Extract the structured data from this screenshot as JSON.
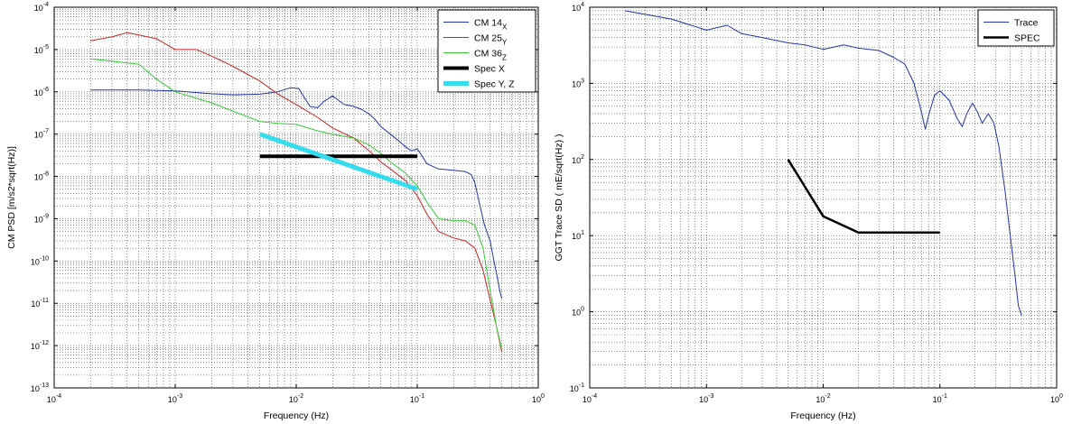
{
  "chart_data": [
    {
      "type": "line",
      "x_scale": "log",
      "y_scale": "log",
      "xlabel": "Frequency (Hz)",
      "ylabel": "CM PSD [m/s2*sqrt(Hz)]",
      "xlim": [
        0.0001,
        1
      ],
      "ylim": [
        1e-13,
        0.0001
      ],
      "x_ticks": [
        0.0001,
        0.001,
        0.01,
        0.1,
        1
      ],
      "x_tick_labels": [
        [
          "10",
          "-4"
        ],
        [
          "10",
          "-3"
        ],
        [
          "10",
          "-2"
        ],
        [
          "10",
          "-1"
        ],
        [
          "10",
          "0"
        ]
      ],
      "y_ticks": [
        1e-13,
        1e-12,
        1e-11,
        1e-10,
        1e-09,
        1e-08,
        1e-07,
        1e-06,
        1e-05,
        0.0001
      ],
      "y_tick_labels": [
        [
          "10",
          "-13"
        ],
        [
          "10",
          "-12"
        ],
        [
          "10",
          "-11"
        ],
        [
          "10",
          "-10"
        ],
        [
          "10",
          "-9"
        ],
        [
          "10",
          "-8"
        ],
        [
          "10",
          "-7"
        ],
        [
          "10",
          "-6"
        ],
        [
          "10",
          "-5"
        ],
        [
          "10",
          "-4"
        ]
      ],
      "grid": true,
      "legend_position": "top-right",
      "series": [
        {
          "name": "CM 14",
          "subscript": "X",
          "color": "#2233aa",
          "width": 1,
          "points": [
            [
              0.0002,
              1.1e-06
            ],
            [
              0.0005,
              1.1e-06
            ],
            [
              0.001,
              1.05e-06
            ],
            [
              0.002,
              9e-07
            ],
            [
              0.003,
              8.5e-07
            ],
            [
              0.005,
              8.8e-07
            ],
            [
              0.007,
              1e-06
            ],
            [
              0.009,
              1.25e-06
            ],
            [
              0.0105,
              1.2e-06
            ],
            [
              0.012,
              6.5e-07
            ],
            [
              0.013,
              4.5e-07
            ],
            [
              0.015,
              4.2e-07
            ],
            [
              0.017,
              6e-07
            ],
            [
              0.02,
              8e-07
            ],
            [
              0.022,
              6.5e-07
            ],
            [
              0.025,
              5e-07
            ],
            [
              0.03,
              4.5e-07
            ],
            [
              0.035,
              3.8e-07
            ],
            [
              0.04,
              3e-07
            ],
            [
              0.045,
              2.2e-07
            ],
            [
              0.05,
              1.5e-07
            ],
            [
              0.06,
              1e-07
            ],
            [
              0.07,
              7e-08
            ],
            [
              0.08,
              5e-08
            ],
            [
              0.09,
              4e-08
            ],
            [
              0.1,
              4.5e-08
            ],
            [
              0.11,
              3e-08
            ],
            [
              0.12,
              2e-08
            ],
            [
              0.15,
              1.5e-08
            ],
            [
              0.2,
              1.4e-08
            ],
            [
              0.25,
              1.3e-08
            ],
            [
              0.28,
              1.1e-08
            ],
            [
              0.3,
              7e-09
            ],
            [
              0.33,
              2e-09
            ],
            [
              0.36,
              7e-10
            ],
            [
              0.4,
              3e-10
            ],
            [
              0.43,
              1e-10
            ],
            [
              0.46,
              4e-11
            ],
            [
              0.48,
              2e-11
            ],
            [
              0.5,
              1.3e-11
            ]
          ]
        },
        {
          "name": "CM 25",
          "subscript": "Y",
          "color": "#cc2222",
          "width": 1,
          "points": [
            [
              0.0002,
              1.6e-05
            ],
            [
              0.0003,
              2e-05
            ],
            [
              0.0004,
              2.5e-05
            ],
            [
              0.0005,
              2.2e-05
            ],
            [
              0.0007,
              1.8e-05
            ],
            [
              0.001,
              1e-05
            ],
            [
              0.0015,
              1e-05
            ],
            [
              0.002,
              7e-06
            ],
            [
              0.003,
              4e-06
            ],
            [
              0.005,
              1.8e-06
            ],
            [
              0.007,
              9e-07
            ],
            [
              0.01,
              5e-07
            ],
            [
              0.015,
              2.5e-07
            ],
            [
              0.02,
              1.4e-07
            ],
            [
              0.03,
              8e-08
            ],
            [
              0.04,
              4e-08
            ],
            [
              0.05,
              2.2e-08
            ],
            [
              0.06,
              1.5e-08
            ],
            [
              0.08,
              8e-09
            ],
            [
              0.1,
              3.5e-09
            ],
            [
              0.12,
              1.3e-09
            ],
            [
              0.15,
              5e-10
            ],
            [
              0.2,
              3.5e-10
            ],
            [
              0.25,
              3e-10
            ],
            [
              0.3,
              2e-10
            ],
            [
              0.35,
              6e-11
            ],
            [
              0.4,
              1.2e-11
            ],
            [
              0.45,
              3e-12
            ],
            [
              0.48,
              1.2e-12
            ],
            [
              0.5,
              7e-13
            ]
          ]
        },
        {
          "name": "CM 36",
          "subscript": "Z",
          "color": "#33cc33",
          "width": 1,
          "points": [
            [
              0.0002,
              6e-06
            ],
            [
              0.0005,
              4.5e-06
            ],
            [
              0.0007,
              2e-06
            ],
            [
              0.001,
              1e-06
            ],
            [
              0.002,
              5.5e-07
            ],
            [
              0.003,
              3.5e-07
            ],
            [
              0.005,
              2e-07
            ],
            [
              0.007,
              1.8e-07
            ],
            [
              0.01,
              1.7e-07
            ],
            [
              0.015,
              1.2e-07
            ],
            [
              0.02,
              1e-07
            ],
            [
              0.03,
              8e-08
            ],
            [
              0.04,
              5.5e-08
            ],
            [
              0.05,
              3.5e-08
            ],
            [
              0.06,
              2.2e-08
            ],
            [
              0.08,
              1.2e-08
            ],
            [
              0.1,
              6e-09
            ],
            [
              0.12,
              2.5e-09
            ],
            [
              0.15,
              1e-09
            ],
            [
              0.2,
              9e-10
            ],
            [
              0.25,
              9e-10
            ],
            [
              0.3,
              7e-10
            ],
            [
              0.35,
              2e-10
            ],
            [
              0.4,
              2e-11
            ],
            [
              0.45,
              3e-12
            ],
            [
              0.5,
              8e-13
            ]
          ]
        },
        {
          "name": "Spec X",
          "subscript": "",
          "color": "#000000",
          "width": 4,
          "points": [
            [
              0.005,
              3e-08
            ],
            [
              0.1,
              3e-08
            ]
          ]
        },
        {
          "name": "Spec Y, Z",
          "subscript": "",
          "color": "#33ddee",
          "width": 5,
          "points": [
            [
              0.005,
              1e-07
            ],
            [
              0.1,
              5e-09
            ]
          ]
        }
      ]
    },
    {
      "type": "line",
      "x_scale": "log",
      "y_scale": "log",
      "xlabel": "Frequency (Hz)",
      "ylabel": "GGT Trace SD ( mE/sqrt(Hz) )",
      "xlim": [
        0.0001,
        1
      ],
      "ylim": [
        0.1,
        10000
      ],
      "x_ticks": [
        0.0001,
        0.001,
        0.01,
        0.1,
        1
      ],
      "x_tick_labels": [
        [
          "10",
          "-4"
        ],
        [
          "10",
          "-3"
        ],
        [
          "10",
          "-2"
        ],
        [
          "10",
          "-1"
        ],
        [
          "10",
          "0"
        ]
      ],
      "y_ticks": [
        0.1,
        1,
        10,
        100,
        1000,
        10000
      ],
      "y_tick_labels": [
        [
          "10",
          "-1"
        ],
        [
          "10",
          "0"
        ],
        [
          "10",
          "1"
        ],
        [
          "10",
          "2"
        ],
        [
          "10",
          "3"
        ],
        [
          "10",
          "4"
        ]
      ],
      "grid": true,
      "legend_position": "top-right",
      "series": [
        {
          "name": "Trace",
          "subscript": "",
          "color": "#2233aa",
          "width": 1,
          "points": [
            [
              0.0002,
              9000
            ],
            [
              0.0005,
              7000
            ],
            [
              0.001,
              5000
            ],
            [
              0.0015,
              5800
            ],
            [
              0.002,
              4500
            ],
            [
              0.003,
              4000
            ],
            [
              0.005,
              3400
            ],
            [
              0.007,
              3200
            ],
            [
              0.01,
              2800
            ],
            [
              0.015,
              3200
            ],
            [
              0.02,
              2900
            ],
            [
              0.03,
              2700
            ],
            [
              0.04,
              2200
            ],
            [
              0.05,
              1800
            ],
            [
              0.06,
              1000
            ],
            [
              0.07,
              400
            ],
            [
              0.075,
              250
            ],
            [
              0.08,
              380
            ],
            [
              0.09,
              700
            ],
            [
              0.1,
              800
            ],
            [
              0.12,
              600
            ],
            [
              0.14,
              350
            ],
            [
              0.155,
              270
            ],
            [
              0.17,
              400
            ],
            [
              0.19,
              550
            ],
            [
              0.21,
              420
            ],
            [
              0.23,
              300
            ],
            [
              0.26,
              400
            ],
            [
              0.29,
              300
            ],
            [
              0.32,
              150
            ],
            [
              0.36,
              40
            ],
            [
              0.4,
              10
            ],
            [
              0.44,
              3
            ],
            [
              0.47,
              1.2
            ],
            [
              0.5,
              0.9
            ]
          ]
        },
        {
          "name": "SPEC",
          "subscript": "",
          "color": "#000000",
          "width": 2.5,
          "points": [
            [
              0.005,
              100
            ],
            [
              0.01,
              18
            ],
            [
              0.02,
              11
            ],
            [
              0.1,
              11
            ]
          ]
        }
      ]
    }
  ]
}
